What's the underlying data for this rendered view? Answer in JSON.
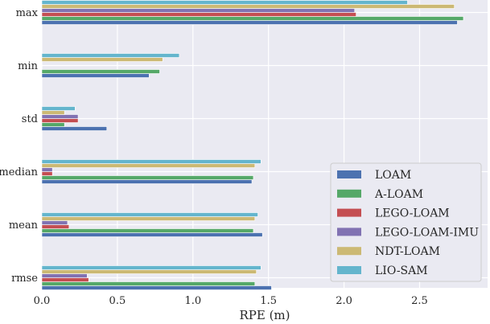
{
  "chart_data": {
    "type": "bar",
    "orientation": "horizontal",
    "title": "",
    "xlabel": "RPE (m)",
    "ylabel": "",
    "xlim": [
      0,
      2.95
    ],
    "xticks": [
      "0.0",
      "0.5",
      "1.0",
      "1.5",
      "2.0",
      "2.5"
    ],
    "grid": true,
    "legend_position": "lower-right",
    "categories": [
      "rmse",
      "mean",
      "median",
      "std",
      "min",
      "max"
    ],
    "series": [
      {
        "name": "LOAM",
        "color": "#4c72b0",
        "values": [
          1.52,
          1.46,
          1.39,
          0.43,
          0.71,
          2.75
        ]
      },
      {
        "name": "A-LOAM",
        "color": "#55a868",
        "values": [
          1.41,
          1.4,
          1.4,
          0.15,
          0.78,
          2.79
        ]
      },
      {
        "name": "LEGO-LOAM",
        "color": "#c44e52",
        "values": [
          0.31,
          0.18,
          0.07,
          0.24,
          0.0,
          2.08
        ]
      },
      {
        "name": "LEGO-LOAM-IMU",
        "color": "#8172b2",
        "values": [
          0.3,
          0.17,
          0.07,
          0.24,
          0.0,
          2.07
        ]
      },
      {
        "name": "NDT-LOAM",
        "color": "#ccb974",
        "values": [
          1.42,
          1.41,
          1.41,
          0.15,
          0.8,
          2.73
        ]
      },
      {
        "name": "LIO-SAM",
        "color": "#64b5cd",
        "values": [
          1.45,
          1.43,
          1.45,
          0.22,
          0.91,
          2.42
        ]
      }
    ]
  }
}
